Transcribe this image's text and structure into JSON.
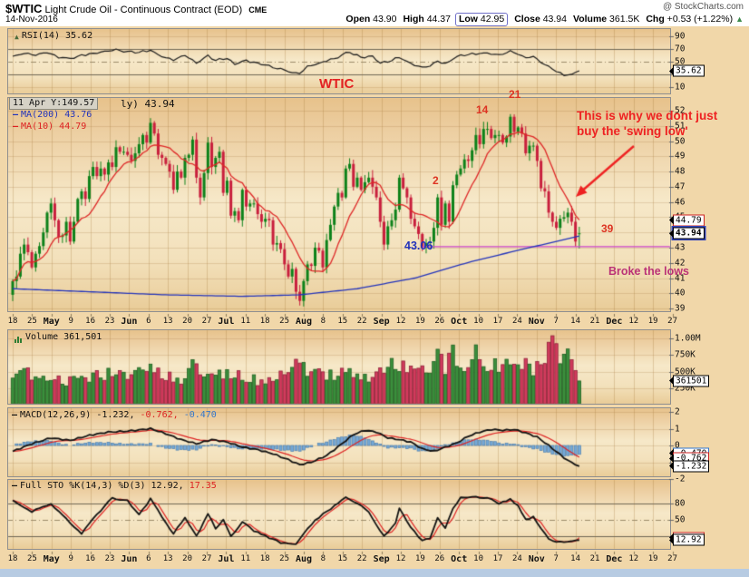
{
  "header": {
    "symbol": "$WTIC",
    "title": "Light Crude Oil - Continuous Contract (EOD)",
    "exchange": "CME",
    "date": "14-Nov-2016",
    "credit": "@ StockCharts.com",
    "quote_fields": [
      {
        "label": "Open",
        "value": "43.90",
        "boxed": false
      },
      {
        "label": "High",
        "value": "44.37",
        "boxed": false
      },
      {
        "label": "Low",
        "value": "42.95",
        "boxed": true
      },
      {
        "label": "Close",
        "value": "43.94",
        "boxed": false
      },
      {
        "label": "Volume",
        "value": "361.5K",
        "boxed": false
      },
      {
        "label": "Chg",
        "value": "+0.53 (+1.22%)",
        "boxed": false
      }
    ],
    "direction_arrow": "▲"
  },
  "legends": {
    "rsi": "RSI(14) 35.62",
    "tooltip": "11 Apr Y:149.57",
    "price_suffix": "ly) 43.94",
    "ma200": "MA(200) 43.76",
    "ma10": "MA(10) 44.79",
    "volume": "Volume 361,501",
    "macd_main": "MACD(12,26,9) -1.232,",
    "macd_signal": "-0.762,",
    "macd_hist": "-0.470",
    "sto_main": "Full STO %K(14,3) %D(3) 12.92,",
    "sto_d": "17.35"
  },
  "annotations": {
    "wtic": "WTIC",
    "count2": "2",
    "count14": "14",
    "count21": "21",
    "count39": "39",
    "reason_line1": "This is why we dont just",
    "reason_line2": "buy the 'swing low'",
    "swing_low": "43.06",
    "broke": "Broke the lows"
  },
  "axes": {
    "date_labels": [
      "18",
      "25",
      "May",
      "9",
      "16",
      "23",
      "Jun",
      "6",
      "13",
      "20",
      "27",
      "Jul",
      "11",
      "18",
      "25",
      "Aug",
      "8",
      "15",
      "22",
      "Sep",
      "12",
      "19",
      "26",
      "Oct",
      "10",
      "17",
      "24",
      "Nov",
      "7",
      "14",
      "21",
      "Dec",
      "12",
      "19",
      "27"
    ],
    "rsi_ticks": [
      {
        "v": 90,
        "label": "90"
      },
      {
        "v": 70,
        "label": "70"
      },
      {
        "v": 50,
        "label": "50"
      },
      {
        "v": 30,
        "label": "30"
      },
      {
        "v": 10,
        "label": "10"
      }
    ],
    "price_ticks": [
      52,
      51,
      50,
      49,
      48,
      47,
      46,
      45,
      44,
      43,
      42,
      41,
      40,
      39
    ],
    "volume_ticks": [
      {
        "v": 1000,
        "label": "1.00M"
      },
      {
        "v": 750,
        "label": "750K"
      },
      {
        "v": 500,
        "label": "500K"
      },
      {
        "v": 250,
        "label": "250K"
      }
    ],
    "macd_ticks": [
      {
        "v": 2,
        "label": "2"
      },
      {
        "v": 1,
        "label": "1"
      },
      {
        "v": 0,
        "label": "0"
      },
      {
        "v": -1,
        "label": "-1"
      },
      {
        "v": -2,
        "label": "-2"
      }
    ],
    "sto_ticks": [
      {
        "v": 80,
        "label": "80"
      },
      {
        "v": 50,
        "label": "50"
      },
      {
        "v": 20,
        "label": "20"
      }
    ]
  },
  "tags": [
    {
      "panel": "rsi",
      "value": 35.62,
      "label": "35.62",
      "color": "#000000",
      "bold": false
    },
    {
      "panel": "price",
      "value": 44.79,
      "label": "44.79",
      "color": "#cc2222",
      "bold": false
    },
    {
      "panel": "price",
      "value": 43.94,
      "label": "43.94",
      "color": "#000000",
      "bold": true,
      "ring": "#3344bb"
    },
    {
      "panel": "vol",
      "value": 361.5,
      "label": "361501",
      "color": "#000000",
      "bold": false
    },
    {
      "panel": "macd",
      "value": -0.47,
      "label": "-0.470",
      "color": "#3377cc",
      "bold": false
    },
    {
      "panel": "macd",
      "value": -0.762,
      "label": "-0.762",
      "color": "#cc2222",
      "bold": false
    },
    {
      "panel": "sto",
      "value": 17.35,
      "label": "17.35",
      "color": "#cc2222",
      "bold": false
    },
    {
      "panel": "macd",
      "value": -1.232,
      "label": "-1.232",
      "color": "#000000",
      "bold": false
    },
    {
      "panel": "sto",
      "value": 12.92,
      "label": "12.92",
      "color": "#000000",
      "bold": false
    }
  ],
  "chart_data": [
    {
      "type": "line",
      "panel": "rsi",
      "name": "RSI(14)",
      "ylim": [
        0,
        100
      ],
      "thresholds": {
        "solid": [
          70,
          30
        ],
        "dashdot": [
          50
        ]
      },
      "last": 35.62,
      "anchors": [
        [
          0,
          58
        ],
        [
          3,
          63
        ],
        [
          6,
          60
        ],
        [
          9,
          64
        ],
        [
          12,
          57
        ],
        [
          15,
          55
        ],
        [
          18,
          60
        ],
        [
          21,
          63
        ],
        [
          24,
          66
        ],
        [
          27,
          69
        ],
        [
          30,
          66
        ],
        [
          33,
          65
        ],
        [
          36,
          68
        ],
        [
          39,
          58
        ],
        [
          42,
          53
        ],
        [
          45,
          60
        ],
        [
          48,
          48
        ],
        [
          51,
          60
        ],
        [
          53,
          52
        ],
        [
          56,
          56
        ],
        [
          58,
          46
        ],
        [
          61,
          52
        ],
        [
          64,
          47
        ],
        [
          67,
          43
        ],
        [
          70,
          38
        ],
        [
          73,
          33
        ],
        [
          75,
          32
        ],
        [
          77,
          42
        ],
        [
          80,
          47
        ],
        [
          84,
          55
        ],
        [
          87,
          63
        ],
        [
          88,
          65
        ],
        [
          91,
          57
        ],
        [
          94,
          58
        ],
        [
          96,
          48
        ],
        [
          98,
          50
        ],
        [
          101,
          57
        ],
        [
          104,
          47
        ],
        [
          107,
          41
        ],
        [
          109,
          43
        ],
        [
          111,
          52
        ],
        [
          113,
          46
        ],
        [
          115,
          55
        ],
        [
          117,
          60
        ],
        [
          120,
          62
        ],
        [
          124,
          64
        ],
        [
          127,
          60
        ],
        [
          130,
          66
        ],
        [
          132,
          62
        ],
        [
          134,
          56
        ],
        [
          136,
          58
        ],
        [
          138,
          50
        ],
        [
          140,
          42
        ],
        [
          142,
          35
        ],
        [
          144,
          29
        ],
        [
          146,
          30
        ],
        [
          148,
          35.62
        ]
      ]
    },
    {
      "type": "candlestick",
      "panel": "price",
      "name": "$WTIC Daily",
      "ylim": [
        39,
        52.7
      ],
      "title": "$WTIC Light Crude Oil - Continuous Contract (EOD) CME",
      "closes": [
        40.8,
        41.1,
        42.6,
        43.2,
        42.7,
        41.7,
        42.6,
        43.1,
        44.0,
        45.3,
        45.9,
        44.8,
        43.7,
        43.8,
        44.7,
        43.4,
        44.7,
        46.2,
        46.7,
        46.2,
        47.7,
        48.3,
        47.7,
        48.2,
        47.8,
        48.6,
        48.3,
        49.6,
        49.3,
        49.3,
        49.1,
        48.7,
        49.2,
        49.8,
        50.4,
        49.9,
        51.2,
        50.5,
        49.1,
        48.9,
        48.5,
        48.0,
        46.8,
        48.0,
        47.6,
        48.9,
        49.1,
        50.1,
        47.6,
        46.3,
        47.9,
        49.9,
        48.3,
        48.9,
        49.3,
        46.6,
        47.4,
        45.1,
        45.4,
        44.8,
        46.8,
        45.7,
        45.9,
        45.9,
        45.2,
        44.7,
        44.9,
        44.8,
        43.2,
        43.3,
        42.9,
        41.9,
        41.1,
        41.6,
        40.1,
        39.5,
        40.8,
        41.9,
        41.8,
        43.0,
        42.8,
        41.7,
        43.5,
        44.5,
        45.7,
        46.6,
        46.3,
        48.2,
        48.5,
        47.0,
        47.6,
        46.8,
        47.3,
        47.6,
        47.0,
        46.3,
        44.7,
        43.2,
        44.4,
        44.8,
        45.5,
        47.6,
        46.9,
        46.3,
        44.9,
        44.4,
        43.9,
        43.0,
        43.3,
        43.4,
        44.3,
        46.3,
        44.5,
        45.9,
        44.7,
        47.1,
        47.8,
        48.2,
        48.8,
        48.7,
        49.4,
        50.4,
        49.8,
        50.8,
        50.8,
        50.2,
        50.4,
        50.4,
        49.9,
        50.3,
        51.6,
        50.6,
        50.9,
        50.5,
        49.2,
        49.7,
        49.7,
        48.7,
        46.9,
        46.7,
        45.3,
        44.7,
        44.3,
        44.9,
        45.0,
        45.3,
        44.7,
        43.4,
        43.94
      ],
      "last_candle": {
        "open": 43.9,
        "high": 44.37,
        "low": 42.95,
        "close": 43.94
      },
      "overlays": [
        {
          "name": "MA(200)",
          "last": 43.76,
          "anchors": [
            [
              0,
              40.3
            ],
            [
              20,
              40.1
            ],
            [
              40,
              39.9
            ],
            [
              60,
              39.8
            ],
            [
              75,
              39.9
            ],
            [
              90,
              40.3
            ],
            [
              105,
              41.0
            ],
            [
              120,
              42.1
            ],
            [
              135,
              43.0
            ],
            [
              148,
              43.76
            ]
          ]
        },
        {
          "name": "MA(10)",
          "window": 10,
          "last": 44.79
        }
      ],
      "support_line": {
        "value": 43.06,
        "from_day": 107
      }
    },
    {
      "type": "bar",
      "panel": "vol",
      "name": "Volume",
      "ylim": [
        0,
        1100
      ],
      "unit": "K",
      "last": 361.501,
      "anchors": [
        [
          0,
          380
        ],
        [
          4,
          480
        ],
        [
          8,
          420
        ],
        [
          12,
          380
        ],
        [
          16,
          350
        ],
        [
          20,
          420
        ],
        [
          24,
          460
        ],
        [
          27,
          520
        ],
        [
          31,
          470
        ],
        [
          36,
          560
        ],
        [
          40,
          420
        ],
        [
          44,
          380
        ],
        [
          47,
          640
        ],
        [
          49,
          560
        ],
        [
          51,
          480
        ],
        [
          55,
          420
        ],
        [
          58,
          460
        ],
        [
          62,
          380
        ],
        [
          66,
          360
        ],
        [
          70,
          420
        ],
        [
          74,
          580
        ],
        [
          75,
          680
        ],
        [
          78,
          480
        ],
        [
          82,
          420
        ],
        [
          85,
          460
        ],
        [
          88,
          560
        ],
        [
          91,
          420
        ],
        [
          94,
          380
        ],
        [
          97,
          560
        ],
        [
          101,
          620
        ],
        [
          104,
          480
        ],
        [
          107,
          520
        ],
        [
          109,
          460
        ],
        [
          111,
          700
        ],
        [
          113,
          540
        ],
        [
          115,
          780
        ],
        [
          117,
          680
        ],
        [
          119,
          600
        ],
        [
          121,
          880
        ],
        [
          124,
          560
        ],
        [
          126,
          620
        ],
        [
          128,
          540
        ],
        [
          130,
          760
        ],
        [
          132,
          580
        ],
        [
          134,
          640
        ],
        [
          136,
          560
        ],
        [
          138,
          700
        ],
        [
          141,
          920
        ],
        [
          143,
          640
        ],
        [
          145,
          700
        ],
        [
          147,
          560
        ],
        [
          148,
          361.5
        ]
      ]
    },
    {
      "type": "line",
      "panel": "macd",
      "name": "MACD(12,26,9)",
      "ylim": [
        -2.3,
        2.3
      ],
      "last": {
        "macd": -1.232,
        "signal": -0.762,
        "hist": -0.47
      },
      "signal_window": 9,
      "anchors": [
        [
          0,
          -0.35
        ],
        [
          5,
          0.1
        ],
        [
          10,
          0.45
        ],
        [
          15,
          0.3
        ],
        [
          20,
          0.6
        ],
        [
          25,
          0.8
        ],
        [
          30,
          0.85
        ],
        [
          36,
          1.0
        ],
        [
          40,
          0.7
        ],
        [
          44,
          0.35
        ],
        [
          48,
          0.1
        ],
        [
          52,
          0.35
        ],
        [
          56,
          0.2
        ],
        [
          60,
          -0.1
        ],
        [
          64,
          -0.25
        ],
        [
          68,
          -0.5
        ],
        [
          72,
          -0.85
        ],
        [
          75,
          -1.15
        ],
        [
          78,
          -1.0
        ],
        [
          82,
          -0.6
        ],
        [
          86,
          0.1
        ],
        [
          89,
          0.65
        ],
        [
          92,
          0.9
        ],
        [
          95,
          0.8
        ],
        [
          98,
          0.45
        ],
        [
          101,
          0.35
        ],
        [
          104,
          0.2
        ],
        [
          107,
          -0.2
        ],
        [
          110,
          -0.35
        ],
        [
          113,
          -0.1
        ],
        [
          116,
          0.15
        ],
        [
          119,
          0.55
        ],
        [
          122,
          0.8
        ],
        [
          125,
          0.95
        ],
        [
          128,
          0.9
        ],
        [
          131,
          0.95
        ],
        [
          134,
          0.75
        ],
        [
          137,
          0.5
        ],
        [
          140,
          0.0
        ],
        [
          143,
          -0.55
        ],
        [
          145,
          -0.9
        ],
        [
          148,
          -1.232
        ]
      ]
    },
    {
      "type": "line",
      "panel": "sto",
      "name": "Full STO %K(14,3) %D(3)",
      "ylim": [
        0,
        100
      ],
      "thresholds": {
        "solid": [
          80,
          20
        ],
        "dashdot": [
          50
        ]
      },
      "last": {
        "k": 12.92,
        "d": 17.35
      },
      "d_window": 3,
      "anchors": [
        [
          0,
          85
        ],
        [
          5,
          65
        ],
        [
          10,
          80
        ],
        [
          15,
          45
        ],
        [
          18,
          25
        ],
        [
          22,
          60
        ],
        [
          26,
          90
        ],
        [
          30,
          85
        ],
        [
          33,
          60
        ],
        [
          36,
          88
        ],
        [
          39,
          55
        ],
        [
          42,
          25
        ],
        [
          45,
          55
        ],
        [
          48,
          20
        ],
        [
          51,
          60
        ],
        [
          53,
          35
        ],
        [
          55,
          50
        ],
        [
          57,
          20
        ],
        [
          60,
          45
        ],
        [
          63,
          30
        ],
        [
          66,
          20
        ],
        [
          70,
          8
        ],
        [
          74,
          6
        ],
        [
          77,
          35
        ],
        [
          80,
          55
        ],
        [
          84,
          75
        ],
        [
          87,
          92
        ],
        [
          90,
          80
        ],
        [
          93,
          65
        ],
        [
          95,
          40
        ],
        [
          97,
          20
        ],
        [
          100,
          45
        ],
        [
          101,
          70
        ],
        [
          104,
          35
        ],
        [
          107,
          12
        ],
        [
          109,
          15
        ],
        [
          111,
          55
        ],
        [
          113,
          35
        ],
        [
          115,
          70
        ],
        [
          117,
          90
        ],
        [
          120,
          93
        ],
        [
          124,
          90
        ],
        [
          127,
          80
        ],
        [
          130,
          88
        ],
        [
          132,
          75
        ],
        [
          134,
          50
        ],
        [
          136,
          55
        ],
        [
          138,
          35
        ],
        [
          140,
          15
        ],
        [
          142,
          8
        ],
        [
          144,
          10
        ],
        [
          146,
          12
        ],
        [
          148,
          12.92
        ]
      ]
    }
  ],
  "colors": {
    "candle_up": "#0c8119",
    "candle_down": "#c81e3c",
    "vol_up_fill": "#3a8f3c",
    "vol_up_stroke": "#1c5e20",
    "vol_down_fill": "#d23b5d",
    "vol_down_stroke": "#8e1f38",
    "ma10": "#dd2626",
    "ma200": "#2233bb",
    "rsi_line": "#1a1a1a",
    "macd_line": "#111111",
    "macd_signal": "#dd2222",
    "macd_hist_fill": "#74a9d8",
    "macd_hist_stroke": "#4e7fae",
    "sto_k": "#111111",
    "sto_d": "#dd2222",
    "support": "#cc44cc",
    "annotation_red": "#ee2222",
    "annotation_blue": "#2233bb",
    "annotation_magenta": "#bb3377",
    "panel_bg_top": "#e7c28b",
    "panel_bg_mid": "#f6e8c8"
  }
}
